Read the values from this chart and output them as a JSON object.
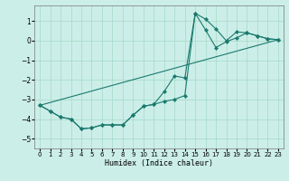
{
  "xlabel": "Humidex (Indice chaleur)",
  "ylabel": "",
  "bg_color": "#cceee8",
  "line_color": "#1a7a6e",
  "grid_color": "#aaddcc",
  "xlim": [
    -0.5,
    23.5
  ],
  "ylim": [
    -5.5,
    1.8
  ],
  "yticks": [
    -5,
    -4,
    -3,
    -2,
    -1,
    0,
    1
  ],
  "xticks": [
    0,
    1,
    2,
    3,
    4,
    5,
    6,
    7,
    8,
    9,
    10,
    11,
    12,
    13,
    14,
    15,
    16,
    17,
    18,
    19,
    20,
    21,
    22,
    23
  ],
  "series": [
    {
      "x": [
        0,
        1,
        2,
        3,
        4,
        5,
        6,
        7,
        8,
        9,
        10,
        11,
        12,
        13,
        14,
        15,
        16,
        17,
        18,
        19,
        20,
        21,
        22,
        23
      ],
      "y": [
        -3.3,
        -3.6,
        -3.9,
        -4.0,
        -4.5,
        -4.45,
        -4.3,
        -4.3,
        -4.3,
        -3.8,
        -3.35,
        -3.25,
        -3.1,
        -3.0,
        -2.8,
        1.4,
        1.1,
        0.6,
        0.0,
        0.45,
        0.4,
        0.25,
        0.1,
        0.05
      ],
      "marker": true
    },
    {
      "x": [
        0,
        1,
        2,
        3,
        4,
        5,
        6,
        7,
        8,
        9,
        10,
        11,
        12,
        13,
        14,
        15,
        16,
        17,
        18,
        19,
        20,
        21,
        22,
        23
      ],
      "y": [
        -3.3,
        -3.6,
        -3.9,
        -4.0,
        -4.5,
        -4.45,
        -4.3,
        -4.3,
        -4.3,
        -3.8,
        -3.35,
        -3.25,
        -2.6,
        -1.8,
        -1.9,
        1.4,
        0.55,
        -0.35,
        -0.05,
        0.15,
        0.4,
        0.25,
        0.1,
        0.05
      ],
      "marker": true
    },
    {
      "x": [
        0,
        23
      ],
      "y": [
        -3.3,
        0.05
      ],
      "marker": false
    }
  ]
}
